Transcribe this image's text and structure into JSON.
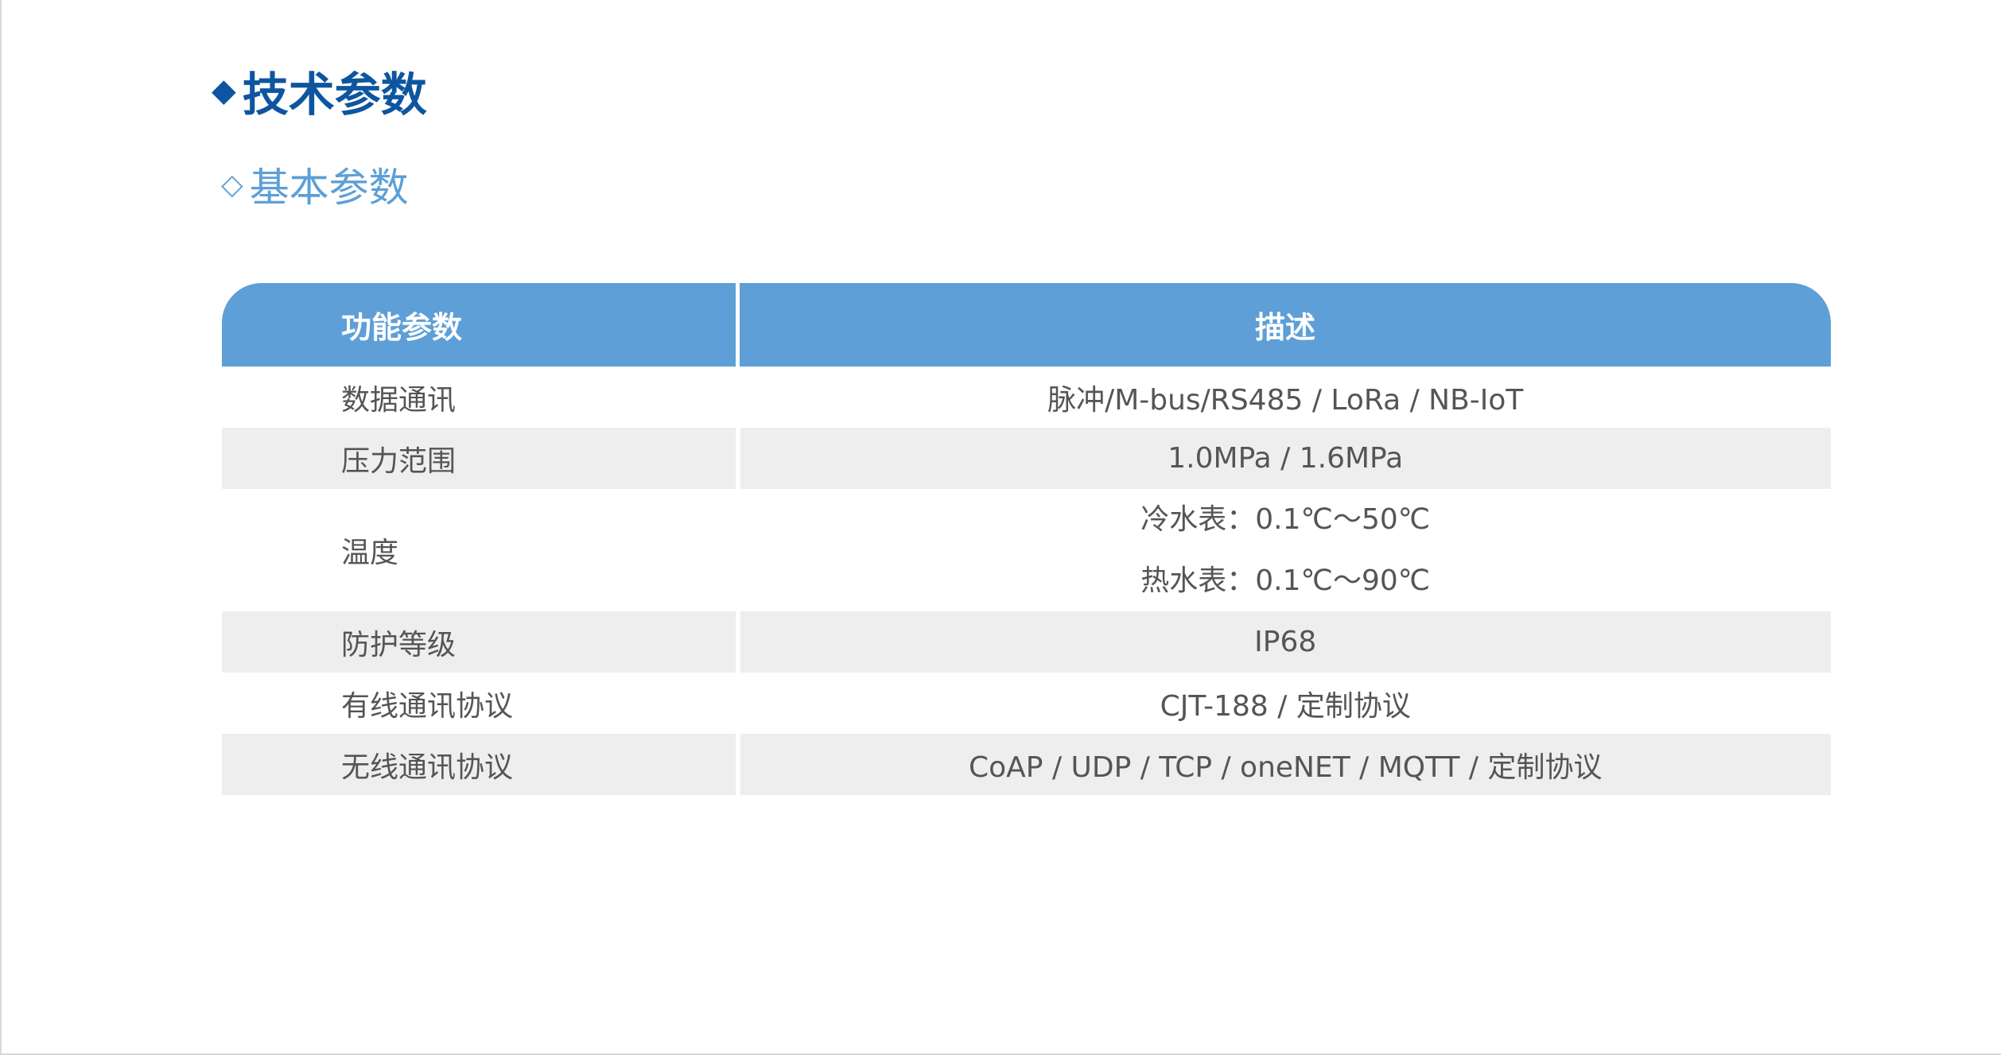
{
  "title": "技术参数",
  "subtitle": "基本参数",
  "icons": {
    "title": "filled-diamond-icon",
    "subtitle": "outline-diamond-icon"
  },
  "colors": {
    "title": "#0d55a0",
    "subtitle": "#5d9fd6",
    "header_bg": "#5d9fd6",
    "stripe": "#eeeeee"
  },
  "table": {
    "headers": [
      "功能参数",
      "描述"
    ],
    "rows": [
      {
        "param": "数据通讯",
        "desc": [
          "脉冲/M-bus/RS485 / LoRa / NB-IoT"
        ]
      },
      {
        "param": "压力范围",
        "desc": [
          "1.0MPa / 1.6MPa"
        ]
      },
      {
        "param": "温度",
        "desc": [
          "冷水表：0.1℃～50℃",
          "热水表：0.1℃～90℃"
        ]
      },
      {
        "param": "防护等级",
        "desc": [
          "IP68"
        ]
      },
      {
        "param": "有线通讯协议",
        "desc": [
          "CJT-188 / 定制协议"
        ]
      },
      {
        "param": "无线通讯协议",
        "desc": [
          "CoAP / UDP / TCP / oneNET / MQTT / 定制协议"
        ]
      }
    ]
  }
}
